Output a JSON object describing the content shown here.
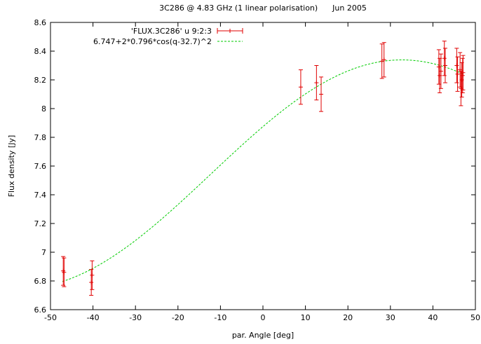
{
  "chart_data": {
    "type": "scatter",
    "title": "3C286 @ 4.83 GHz (1 linear polarisation)      Jun 2005",
    "xlabel": "par. Angle [deg]",
    "ylabel": "Flux density [Jy]",
    "xlim": [
      -50,
      50
    ],
    "ylim": [
      6.6,
      8.6
    ],
    "xticks": [
      "-50",
      "-40",
      "-30",
      "-20",
      "-10",
      "0",
      "10",
      "20",
      "30",
      "40",
      "50"
    ],
    "yticks": [
      "6.6",
      "6.8",
      "7",
      "7.2",
      "7.4",
      "7.6",
      "7.8",
      "8",
      "8.2",
      "8.4",
      "8.6"
    ],
    "grid": false,
    "legend_position": "top-left",
    "series": [
      {
        "name": "'FLUX.3C286' u 9:2:3",
        "kind": "errorbars",
        "color": "#e00000",
        "points": [
          {
            "x": -47.0,
            "y": 6.87,
            "err": 0.1
          },
          {
            "x": -46.8,
            "y": 6.86,
            "err": 0.1
          },
          {
            "x": -40.4,
            "y": 6.79,
            "err": 0.09
          },
          {
            "x": -40.2,
            "y": 6.84,
            "err": 0.1
          },
          {
            "x": 8.9,
            "y": 8.15,
            "err": 0.12
          },
          {
            "x": 12.6,
            "y": 8.18,
            "err": 0.12
          },
          {
            "x": 13.7,
            "y": 8.1,
            "err": 0.12
          },
          {
            "x": 28.0,
            "y": 8.33,
            "err": 0.12
          },
          {
            "x": 28.5,
            "y": 8.34,
            "err": 0.12
          },
          {
            "x": 41.4,
            "y": 8.29,
            "err": 0.12
          },
          {
            "x": 41.6,
            "y": 8.23,
            "err": 0.12
          },
          {
            "x": 41.9,
            "y": 8.26,
            "err": 0.12
          },
          {
            "x": 42.7,
            "y": 8.35,
            "err": 0.12
          },
          {
            "x": 42.9,
            "y": 8.3,
            "err": 0.12
          },
          {
            "x": 45.6,
            "y": 8.3,
            "err": 0.12
          },
          {
            "x": 45.8,
            "y": 8.24,
            "err": 0.12
          },
          {
            "x": 46.4,
            "y": 8.27,
            "err": 0.12
          },
          {
            "x": 46.6,
            "y": 8.14,
            "err": 0.12
          },
          {
            "x": 46.8,
            "y": 8.2,
            "err": 0.12
          },
          {
            "x": 47.0,
            "y": 8.23,
            "err": 0.12
          },
          {
            "x": 47.1,
            "y": 8.25,
            "err": 0.12
          }
        ]
      },
      {
        "name": "6.747+2*0.796*cos(q-32.7)^2",
        "kind": "function",
        "color": "#00cc00",
        "expression": {
          "a": 6.747,
          "b": 0.796,
          "phase_deg": 32.7
        },
        "x_range": [
          -47.2,
          47.2
        ]
      }
    ]
  }
}
